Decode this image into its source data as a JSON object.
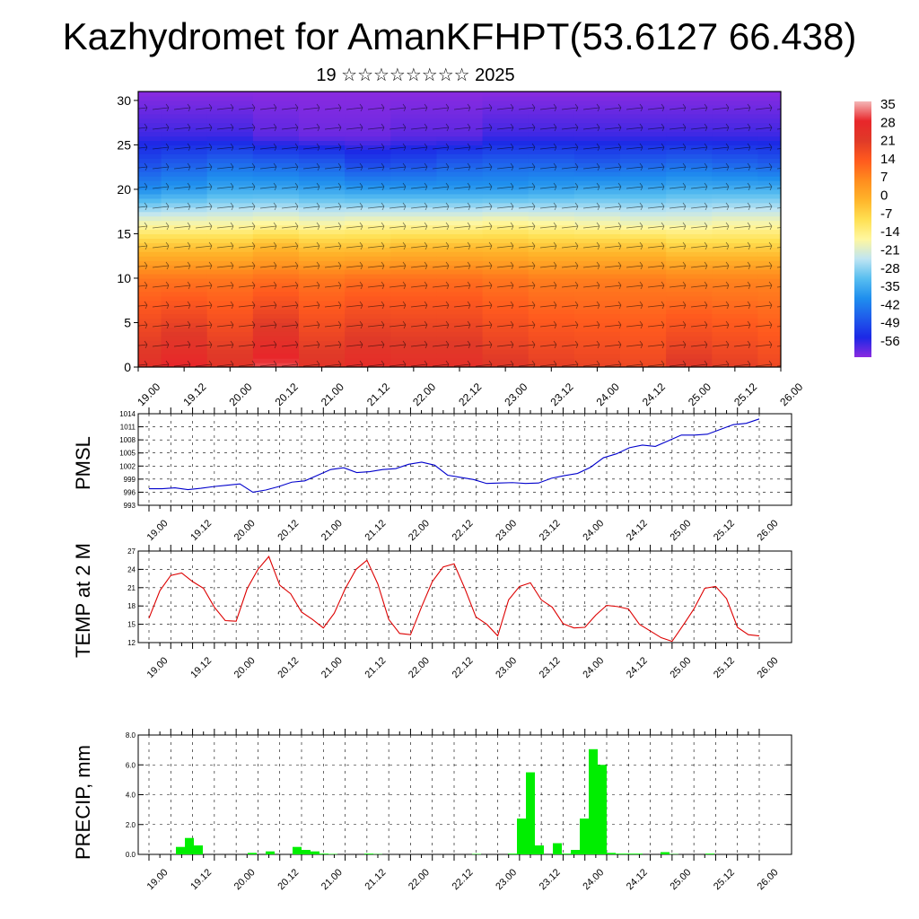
{
  "title": "Kazhydromet for AmanKFHPT(53.6127 66.438)",
  "subtitle": "19 ☆☆☆☆☆☆☆☆ 2025",
  "time_labels": [
    "19.00",
    "19.12",
    "20.00",
    "20.12",
    "21.00",
    "21.12",
    "22.00",
    "22.12",
    "23.00",
    "23.12",
    "24.00",
    "24.12",
    "25.00",
    "25.12",
    "26.00"
  ],
  "colors": {
    "pmsl_line": "#0000cc",
    "temp_line": "#dd0000",
    "precip_bar": "#00ee00"
  },
  "chart_data": [
    {
      "type": "heatmap",
      "title": "",
      "xlabel": "",
      "ylabel": "",
      "x_tick_labels": [
        "19.00",
        "19.12",
        "20.00",
        "20.12",
        "21.00",
        "21.12",
        "22.00",
        "22.12",
        "23.00",
        "23.12",
        "24.00",
        "24.12",
        "25.00",
        "25.12",
        "26.00"
      ],
      "y_ticks": [
        0,
        5,
        10,
        15,
        20,
        25,
        30
      ],
      "ylim": [
        0,
        31
      ],
      "colorbar_labels": [
        "35",
        "28",
        "21",
        "14",
        "7",
        "0",
        "-7",
        "-14",
        "-21",
        "-28",
        "-35",
        "-42",
        "-49",
        "-56"
      ],
      "colorbar_colors": [
        "#f4b7b7",
        "#e8262a",
        "#e03a28",
        "#ff5a1e",
        "#ff8c1e",
        "#ffb42a",
        "#ffe052",
        "#fff7a0",
        "#bfe5f2",
        "#58bef0",
        "#1f8fee",
        "#1f5ceb",
        "#1c28e6",
        "#8a2ae0"
      ],
      "contour_value_rows": [
        {
          "level": 0,
          "values": [
            24,
            28,
            23,
            30,
            23,
            26,
            25,
            25,
            22,
            20,
            19,
            18,
            22,
            20,
            18
          ]
        },
        {
          "level": 10,
          "values": [
            10,
            10,
            10,
            11,
            10,
            11,
            11,
            11,
            10,
            9,
            9,
            9,
            8,
            8,
            8
          ]
        },
        {
          "level": 14,
          "values": [
            -4,
            -4,
            -4,
            -2,
            -4,
            -4,
            -3,
            -3,
            -3,
            -4,
            -4,
            -4,
            -6,
            -6,
            -6
          ]
        },
        {
          "level": 16,
          "values": [
            -14,
            -14,
            -14,
            -13,
            -14,
            -13,
            -13,
            -13,
            -12,
            -13,
            -14,
            -15,
            -15,
            -14,
            -14
          ]
        },
        {
          "level": 20,
          "values": [
            -35,
            -33,
            -31,
            -31,
            -32,
            -33,
            -33,
            -33,
            -33,
            -32,
            -31,
            -31,
            -30,
            -30,
            -30
          ]
        },
        {
          "level": 23,
          "values": [
            -44,
            -42,
            -40,
            -41,
            -42,
            -45,
            -44,
            -42,
            -41,
            -41,
            -42,
            -41,
            -40,
            -41,
            -42
          ]
        },
        {
          "level": 26,
          "values": [
            -51,
            -51,
            -51,
            -53,
            -54,
            -54,
            -53,
            -53,
            -51,
            -51,
            -51,
            -51,
            -51,
            -51,
            -51
          ]
        },
        {
          "level": 31,
          "values": [
            -56,
            -56,
            -56,
            -56,
            -56,
            -56,
            -56,
            -56,
            -56,
            -56,
            -56,
            -56,
            -56,
            -56,
            -56
          ]
        }
      ]
    },
    {
      "type": "line",
      "ylabel": "PMSL",
      "x_tick_labels": [
        "19.00",
        "19.12",
        "20.00",
        "20.12",
        "21.00",
        "21.12",
        "22.00",
        "22.12",
        "23.00",
        "23.12",
        "24.00",
        "24.12",
        "25.00",
        "25.12",
        "26.00"
      ],
      "y_ticks": [
        993,
        996,
        999,
        1002,
        1005,
        1008,
        1011,
        1014
      ],
      "ylim": [
        993,
        1014
      ],
      "series": [
        {
          "values": [
            996.8,
            996.8,
            997.0,
            996.6,
            996.9,
            997.3,
            997.6,
            997.9,
            996.0,
            996.5,
            997.3,
            998.3,
            998.6,
            999.9,
            1001.2,
            1001.6,
            1000.5,
            1000.7,
            1001.2,
            1001.4,
            1002.4,
            1002.9,
            1002.2,
            999.9,
            999.4,
            998.9,
            998.0,
            998.1,
            998.2,
            998.0,
            998.1,
            999.2,
            999.8,
            1000.3,
            1001.7,
            1003.9,
            1004.8,
            1006.2,
            1006.8,
            1006.5,
            1007.8,
            1009.1,
            1009.1,
            1009.3,
            1010.4,
            1011.5,
            1011.8,
            1012.8
          ]
        }
      ],
      "grid": true
    },
    {
      "type": "line",
      "ylabel": "TEMP at 2 M",
      "x_tick_labels": [
        "19.00",
        "19.12",
        "20.00",
        "20.12",
        "21.00",
        "21.12",
        "22.00",
        "22.12",
        "23.00",
        "23.12",
        "24.00",
        "24.12",
        "25.00",
        "25.12",
        "26.00"
      ],
      "y_ticks": [
        12,
        15,
        18,
        21,
        24,
        27
      ],
      "ylim": [
        12,
        27
      ],
      "series": [
        {
          "values": [
            16.0,
            20.5,
            23.0,
            23.4,
            22.0,
            20.9,
            17.8,
            15.6,
            15.5,
            20.8,
            24.0,
            26.1,
            21.4,
            20.0,
            17.0,
            15.8,
            14.4,
            16.8,
            20.8,
            24.0,
            25.5,
            21.6,
            15.8,
            13.5,
            13.3,
            17.8,
            22.0,
            24.4,
            24.9,
            20.8,
            16.2,
            15.0,
            13.1,
            19.0,
            21.2,
            21.8,
            19.0,
            17.8,
            15.1,
            14.4,
            14.5,
            16.5,
            18.1,
            17.9,
            17.5,
            15.0,
            13.9,
            12.8,
            12.2,
            14.8,
            17.5,
            20.9,
            21.2,
            19.2,
            14.5,
            13.3,
            13.1
          ]
        }
      ],
      "grid": true
    },
    {
      "type": "bar",
      "ylabel": "PRECIP, mm",
      "x_tick_labels": [
        "19.00",
        "19.12",
        "20.00",
        "20.12",
        "21.00",
        "21.12",
        "22.00",
        "22.12",
        "23.00",
        "23.12",
        "24.00",
        "24.12",
        "25.00",
        "25.12",
        "26.00"
      ],
      "y_ticks": [
        0,
        2,
        4,
        6,
        8
      ],
      "y_tick_labels": [
        "0.0",
        "2.0",
        "4.0",
        "6.0",
        "8.0"
      ],
      "ylim": [
        0,
        8
      ],
      "values": [
        0,
        0,
        0,
        0.5,
        1.1,
        0.6,
        0,
        0,
        0,
        0,
        0,
        0.1,
        0,
        0.2,
        0,
        0,
        0.5,
        0.3,
        0.2,
        0.05,
        0.03,
        0,
        0,
        0,
        0.05,
        0.02,
        0,
        0,
        0,
        0,
        0,
        0,
        0,
        0,
        0,
        0,
        0.03,
        0,
        0,
        0,
        0.05,
        2.4,
        5.5,
        0.6,
        0,
        0.75,
        0.05,
        0.3,
        2.4,
        7.05,
        6.0,
        0.1,
        0.05,
        0.05,
        0.05,
        0,
        0,
        0.15,
        0.02,
        0,
        0,
        0,
        0.05,
        0,
        0,
        0,
        0,
        0
      ],
      "grid": true
    }
  ]
}
